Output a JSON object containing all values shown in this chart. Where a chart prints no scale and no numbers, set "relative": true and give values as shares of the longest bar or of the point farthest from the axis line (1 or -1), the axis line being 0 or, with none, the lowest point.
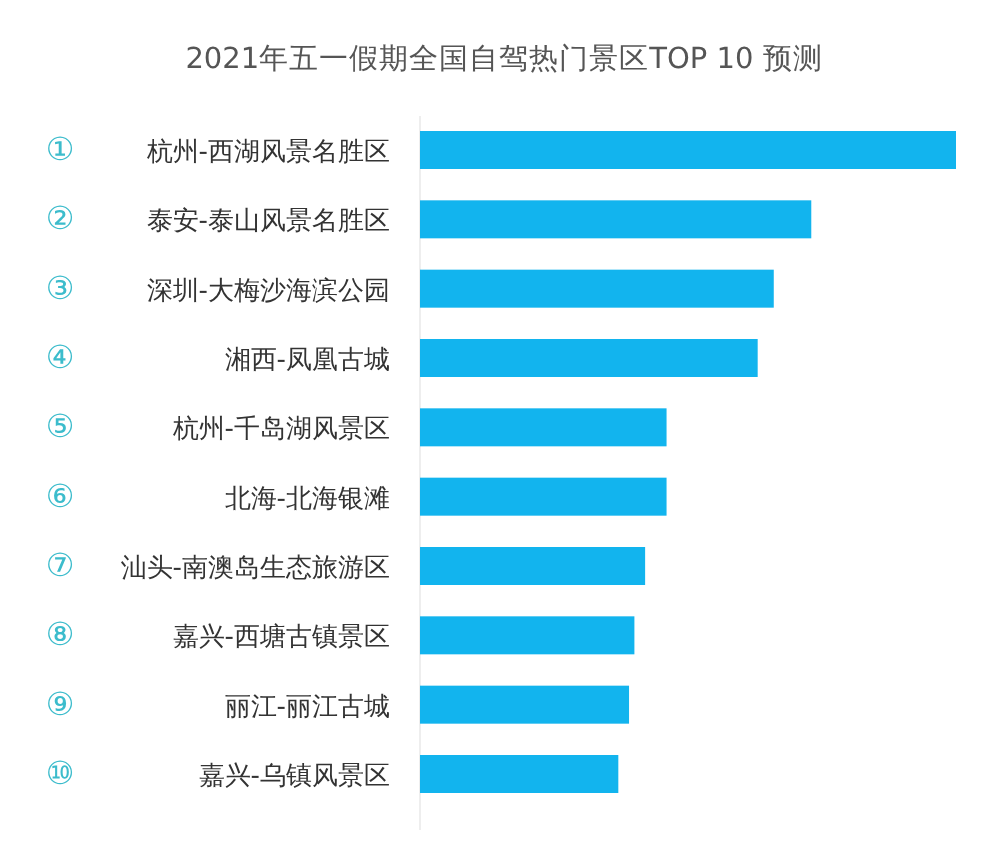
{
  "chart_data": {
    "type": "bar",
    "orientation": "horizontal",
    "relative": true,
    "title": "2021年五一假期全国自驾热门景区TOP 10 预测",
    "categories": [
      "① 杭州-西湖风景名胜区",
      "② 泰安-泰山风景名胜区",
      "③ 深圳-大梅沙海滨公园",
      "④ 湘西-凤凰古城",
      "⑤ 杭州-千岛湖风景区",
      "⑥ 北海-北海银滩",
      "⑦ 汕头-南澳岛生态旅游区",
      "⑧ 嘉兴-西塘古镇景区",
      "⑨ 丽江-丽江古城",
      "⑩ 嘉兴-乌镇风景区"
    ],
    "values": [
      1,
      0.73,
      0.66,
      0.63,
      0.46,
      0.46,
      0.42,
      0.4,
      0.39,
      0.37
    ],
    "color": "#12b4ee"
  }
}
